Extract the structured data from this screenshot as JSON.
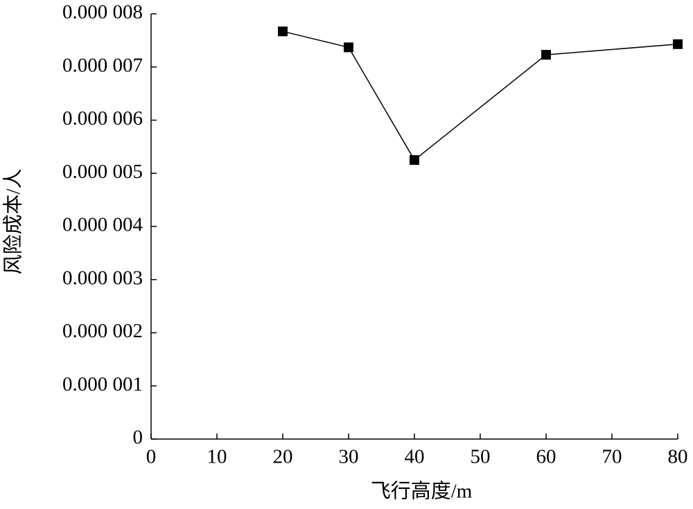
{
  "chart_data": {
    "type": "line",
    "x_label": "飞行高度/m",
    "y_label": "风险成本/人",
    "x": [
      20,
      30,
      40,
      60,
      80
    ],
    "series": [
      {
        "color": "#000000",
        "values": [
          7.67e-06,
          7.37e-06,
          5.25e-06,
          7.23e-06,
          7.43e-06
        ]
      }
    ],
    "xlim": [
      0,
      80
    ],
    "xticks": [
      0,
      10,
      20,
      30,
      40,
      50,
      60,
      70,
      80
    ],
    "ylim": [
      0,
      8e-06
    ],
    "yticks": [
      0,
      {
        "value": 1e-06,
        "label": "0.000 001"
      },
      {
        "value": 2e-06,
        "label": "0.000 002"
      },
      {
        "value": 3e-06,
        "label": "0.000 003"
      },
      {
        "value": 4e-06,
        "label": "0.000 004"
      },
      {
        "value": 5e-06,
        "label": "0.000 005"
      },
      {
        "value": 6e-06,
        "label": "0.000 006"
      },
      {
        "value": 7e-06,
        "label": "0.000 007"
      },
      {
        "value": 8e-06,
        "label": "0.000 008"
      }
    ],
    "grid": false
  }
}
